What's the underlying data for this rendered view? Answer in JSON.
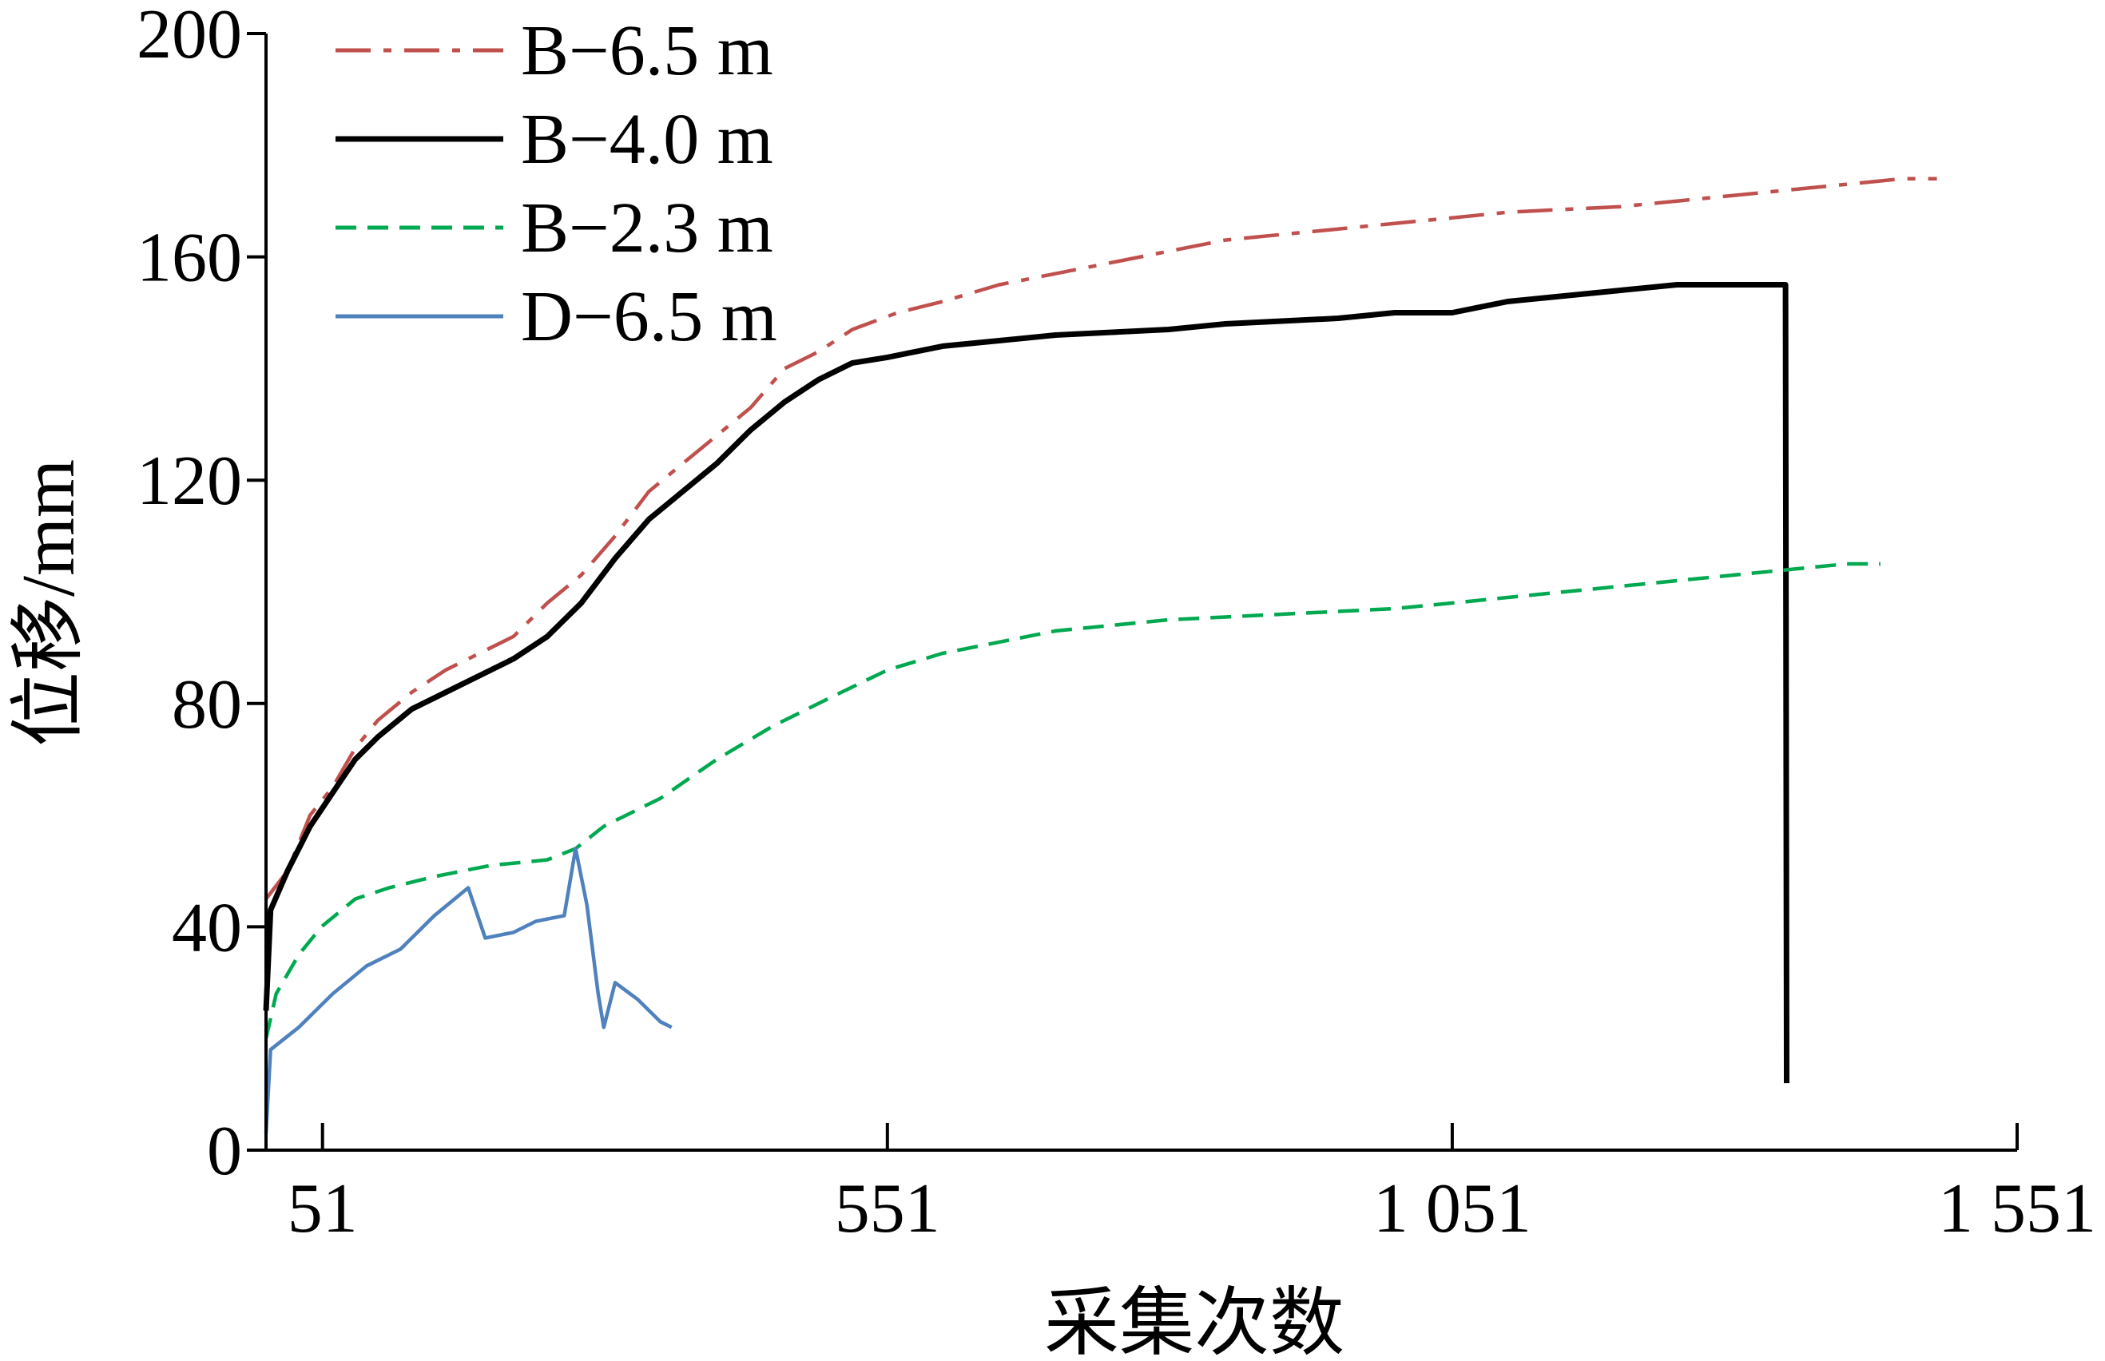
{
  "chart_data": {
    "type": "line",
    "title": "",
    "xlabel": "采集次数",
    "ylabel": "位移/mm",
    "xlim": [
      1,
      1551
    ],
    "ylim": [
      0,
      200
    ],
    "xticks": [
      51,
      551,
      1051,
      1551
    ],
    "xtick_labels": [
      "51",
      "551",
      "1 051",
      "1 551"
    ],
    "yticks": [
      0,
      40,
      80,
      120,
      160,
      200
    ],
    "ytick_labels": [
      "0",
      "40",
      "80",
      "120",
      "160",
      "200"
    ],
    "grid": false,
    "legend_position": "top-left",
    "series": [
      {
        "name": "B−6.5 m",
        "color": "#c0504d",
        "dash": "dash-dot",
        "points": [
          [
            1,
            45
          ],
          [
            20,
            50
          ],
          [
            40,
            60
          ],
          [
            60,
            65
          ],
          [
            80,
            72
          ],
          [
            100,
            77
          ],
          [
            130,
            82
          ],
          [
            160,
            86
          ],
          [
            190,
            89
          ],
          [
            220,
            92
          ],
          [
            250,
            98
          ],
          [
            280,
            103
          ],
          [
            310,
            110
          ],
          [
            340,
            118
          ],
          [
            370,
            123
          ],
          [
            400,
            128
          ],
          [
            430,
            133
          ],
          [
            460,
            140
          ],
          [
            490,
            143
          ],
          [
            520,
            147
          ],
          [
            560,
            150
          ],
          [
            600,
            152
          ],
          [
            650,
            155
          ],
          [
            700,
            157
          ],
          [
            750,
            159
          ],
          [
            800,
            161
          ],
          [
            850,
            163
          ],
          [
            900,
            164
          ],
          [
            950,
            165
          ],
          [
            1000,
            166
          ],
          [
            1051,
            167
          ],
          [
            1100,
            168
          ],
          [
            1150,
            168.5
          ],
          [
            1200,
            169
          ],
          [
            1250,
            170
          ],
          [
            1300,
            171
          ],
          [
            1350,
            172
          ],
          [
            1400,
            173
          ],
          [
            1450,
            174
          ],
          [
            1480,
            174
          ]
        ]
      },
      {
        "name": "B−4.0 m",
        "color": "#000000",
        "dash": "solid",
        "points": [
          [
            1,
            25
          ],
          [
            5,
            43
          ],
          [
            20,
            50
          ],
          [
            40,
            58
          ],
          [
            60,
            64
          ],
          [
            80,
            70
          ],
          [
            100,
            74
          ],
          [
            130,
            79
          ],
          [
            160,
            82
          ],
          [
            190,
            85
          ],
          [
            220,
            88
          ],
          [
            250,
            92
          ],
          [
            280,
            98
          ],
          [
            310,
            106
          ],
          [
            340,
            113
          ],
          [
            370,
            118
          ],
          [
            400,
            123
          ],
          [
            430,
            129
          ],
          [
            460,
            134
          ],
          [
            490,
            138
          ],
          [
            520,
            141
          ],
          [
            551,
            142
          ],
          [
            600,
            144
          ],
          [
            650,
            145
          ],
          [
            700,
            146
          ],
          [
            750,
            146.5
          ],
          [
            800,
            147
          ],
          [
            850,
            148
          ],
          [
            900,
            148.5
          ],
          [
            950,
            149
          ],
          [
            1000,
            150
          ],
          [
            1051,
            150
          ],
          [
            1100,
            152
          ],
          [
            1150,
            153
          ],
          [
            1200,
            154
          ],
          [
            1250,
            155
          ],
          [
            1290,
            155
          ],
          [
            1345,
            155
          ],
          [
            1346,
            155
          ],
          [
            1347,
            12
          ]
        ]
      },
      {
        "name": "B−2.3 m",
        "color": "#00a94f",
        "dash": "dashed",
        "points": [
          [
            1,
            20
          ],
          [
            10,
            28
          ],
          [
            30,
            35
          ],
          [
            50,
            40
          ],
          [
            80,
            45
          ],
          [
            110,
            47
          ],
          [
            150,
            49
          ],
          [
            200,
            51
          ],
          [
            250,
            52
          ],
          [
            275,
            54
          ],
          [
            300,
            58
          ],
          [
            350,
            63
          ],
          [
            400,
            70
          ],
          [
            450,
            76
          ],
          [
            500,
            81
          ],
          [
            551,
            86
          ],
          [
            600,
            89
          ],
          [
            650,
            91
          ],
          [
            700,
            93
          ],
          [
            750,
            94
          ],
          [
            800,
            95
          ],
          [
            850,
            95.5
          ],
          [
            900,
            96
          ],
          [
            950,
            96.5
          ],
          [
            1000,
            97
          ],
          [
            1051,
            98
          ],
          [
            1100,
            99
          ],
          [
            1150,
            100
          ],
          [
            1200,
            101
          ],
          [
            1250,
            102
          ],
          [
            1300,
            103
          ],
          [
            1350,
            104
          ],
          [
            1400,
            105
          ],
          [
            1430,
            105
          ]
        ]
      },
      {
        "name": "D−6.5 m",
        "color": "#4f81bd",
        "dash": "solid",
        "points": [
          [
            1,
            3
          ],
          [
            5,
            18
          ],
          [
            30,
            22
          ],
          [
            60,
            28
          ],
          [
            90,
            33
          ],
          [
            120,
            36
          ],
          [
            150,
            42
          ],
          [
            180,
            47
          ],
          [
            195,
            38
          ],
          [
            220,
            39
          ],
          [
            240,
            41
          ],
          [
            265,
            42
          ],
          [
            275,
            54
          ],
          [
            285,
            44
          ],
          [
            295,
            28
          ],
          [
            300,
            22
          ],
          [
            310,
            30
          ],
          [
            330,
            27
          ],
          [
            350,
            23
          ],
          [
            360,
            22
          ]
        ]
      }
    ]
  }
}
